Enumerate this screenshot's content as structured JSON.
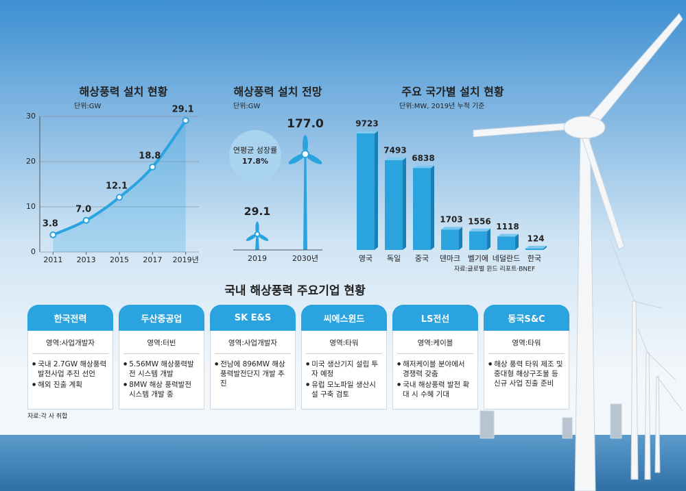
{
  "chart_data": [
    {
      "type": "line",
      "title": "해상풍력 설치 현황",
      "subtitle": "단위:GW",
      "x": [
        2011,
        2013,
        2015,
        2017,
        2019
      ],
      "values": [
        3.8,
        7.0,
        12.1,
        18.8,
        29.1
      ],
      "value_labels": [
        "3.8",
        "7.0",
        "12.1",
        "18.8",
        "29.1"
      ],
      "color": "#2aa3df",
      "xlim": [
        2010.2,
        2019.8
      ],
      "xticks": [
        2011,
        2013,
        2015,
        2017,
        {
          "value": 2019,
          "label": "2019년"
        }
      ],
      "ylim": [
        0,
        30
      ],
      "yticks": [
        0,
        10,
        20,
        30
      ],
      "grid": true
    },
    {
      "type": "pictogram",
      "title": "해상풍력 설치 전망",
      "subtitle": "단위:GW",
      "categories": [
        "2019",
        "2030년"
      ],
      "values": [
        29.1,
        177.0
      ],
      "value_labels": [
        "29.1",
        "177.0"
      ],
      "annotation": [
        "연평균 성장률",
        "17.8%"
      ],
      "color": "#2aa3df"
    },
    {
      "type": "bar",
      "title": "주요 국가별 설치 현황",
      "subtitle": "단위:MW, 2019년 누적 기준",
      "categories": [
        "영국",
        "독일",
        "중국",
        "덴마크",
        "벨기에",
        "네덜란드",
        "한국"
      ],
      "values": [
        9723,
        7493,
        6838,
        1703,
        1556,
        1118,
        124
      ],
      "color": "#2aa3df",
      "note": "자료:글로벌 윈드 리포트·BNEF"
    }
  ],
  "companies": {
    "title": "국내 해상풍력 주요기업 현황",
    "source": "자료:각 사 취합",
    "items": [
      {
        "name": "한국전력",
        "area": "영역:사업개발자",
        "points": [
          "국내 2.7GW 해상풍력 발전사업 추진 선언",
          "해외 진출 계획"
        ]
      },
      {
        "name": "두산중공업",
        "area": "영역:터빈",
        "points": [
          "5.56MW 해상풍력발전 시스템 개발",
          "8MW 해상 풍력발전 시스템 개발 중"
        ]
      },
      {
        "name": "SK E&S",
        "area": "영역:사업개발자",
        "points": [
          "전남에 896MW 해상풍력발전단지 개발 추진"
        ]
      },
      {
        "name": "씨에스윈드",
        "area": "영역:타워",
        "points": [
          "미국 생산기지 설립 투자 예정",
          "유럽 모노파일 생산시설 구축 검토"
        ]
      },
      {
        "name": "LS전선",
        "area": "영역:케이블",
        "points": [
          "해저케이블 분야에서 경쟁력 갖춤",
          "국내 해상풍력 발전 확대 시 수혜 기대"
        ]
      },
      {
        "name": "동국S&C",
        "area": "영역:타워",
        "points": [
          "해상 풍력 타워 제조 및 중대형 해상구조물 등 신규 사업 진출 준비"
        ]
      }
    ]
  }
}
